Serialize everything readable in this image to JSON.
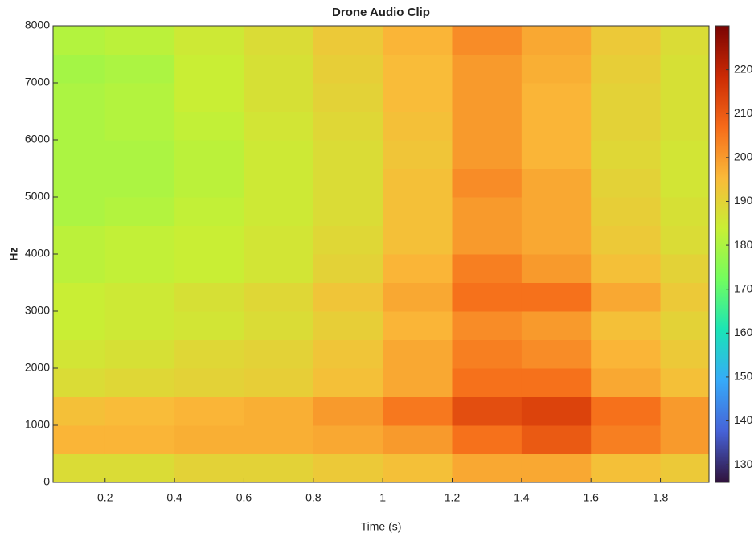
{
  "chart_data": {
    "type": "heatmap",
    "title": "Drone Audio Clip",
    "x_label": "Time (s)",
    "y_label": "Hz",
    "x_bins": [
      0.05,
      0.2,
      0.4,
      0.6,
      0.8,
      1.0,
      1.2,
      1.4,
      1.6,
      1.8,
      1.94
    ],
    "y_bins": [
      0,
      500,
      1000,
      1500,
      2000,
      2500,
      3000,
      3500,
      4000,
      4500,
      5000,
      5500,
      6000,
      6500,
      7000,
      7500,
      8000
    ],
    "z": [
      [
        188,
        188,
        190,
        190,
        192,
        194,
        198,
        198,
        194,
        192
      ],
      [
        196,
        196,
        197,
        197,
        198,
        200,
        206,
        210,
        204,
        200
      ],
      [
        194,
        195,
        196,
        197,
        200,
        205,
        212,
        214,
        206,
        200
      ],
      [
        188,
        189,
        190,
        191,
        194,
        198,
        206,
        206,
        198,
        194
      ],
      [
        186,
        187,
        189,
        190,
        193,
        198,
        204,
        202,
        196,
        192
      ],
      [
        184,
        185,
        186,
        188,
        191,
        196,
        202,
        200,
        194,
        190
      ],
      [
        184,
        185,
        187,
        189,
        193,
        198,
        206,
        206,
        198,
        192
      ],
      [
        182,
        183,
        184,
        186,
        190,
        196,
        204,
        200,
        194,
        190
      ],
      [
        182,
        183,
        184,
        186,
        189,
        194,
        200,
        198,
        192,
        188
      ],
      [
        180,
        181,
        183,
        185,
        188,
        194,
        200,
        198,
        191,
        187
      ],
      [
        180,
        180,
        182,
        185,
        188,
        194,
        202,
        198,
        190,
        186
      ],
      [
        180,
        180,
        182,
        185,
        188,
        193,
        200,
        196,
        189,
        186
      ],
      [
        180,
        181,
        183,
        186,
        189,
        194,
        200,
        196,
        190,
        187
      ],
      [
        180,
        181,
        184,
        187,
        190,
        195,
        200,
        196,
        190,
        187
      ],
      [
        179,
        180,
        184,
        187,
        191,
        195,
        200,
        197,
        191,
        187
      ],
      [
        181,
        182,
        185,
        188,
        192,
        196,
        202,
        198,
        192,
        188
      ]
    ],
    "xlim": [
      0.05,
      1.94
    ],
    "ylim": [
      0,
      8000
    ],
    "xticks": [
      0.2,
      0.4,
      0.6,
      0.8,
      1,
      1.2,
      1.4,
      1.6,
      1.8
    ],
    "yticks": [
      0,
      1000,
      2000,
      3000,
      4000,
      5000,
      6000,
      7000,
      8000
    ],
    "clim": [
      126,
      230
    ],
    "cticks": [
      130,
      140,
      150,
      160,
      170,
      180,
      190,
      200,
      210,
      220
    ],
    "colormap": [
      "#30123b",
      "#4662d7",
      "#36aaf9",
      "#1ae4b6",
      "#72fe5e",
      "#c8ef34",
      "#faba39",
      "#f66b19",
      "#cb2a04",
      "#7a0403"
    ]
  }
}
